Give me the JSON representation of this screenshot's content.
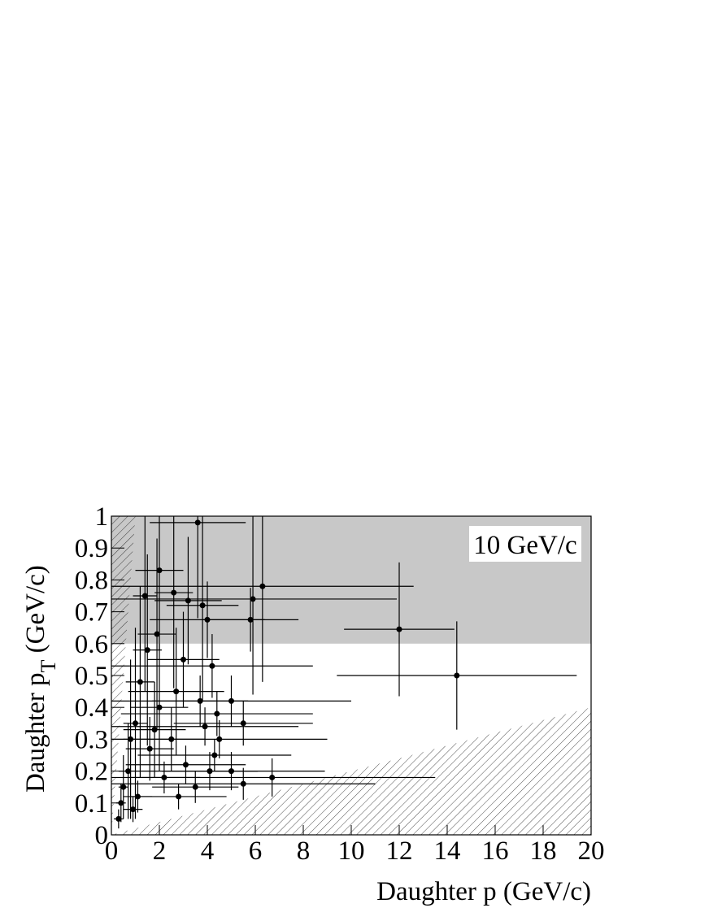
{
  "chart_data": {
    "type": "scatter",
    "x_label": "Daughter p (GeV/c)",
    "y_label": "Daughter p",
    "y_label_sub": "T",
    "y_label_end": " (GeV/c)",
    "annotation": "10 GeV/c",
    "xlim": [
      0,
      20
    ],
    "xticks": [
      0,
      2,
      4,
      6,
      8,
      10,
      12,
      14,
      16,
      18,
      20
    ],
    "ylim": [
      0,
      1
    ],
    "yticks": [
      0,
      0.1,
      0.2,
      0.3,
      0.4,
      0.5,
      0.6,
      0.7,
      0.8,
      0.9,
      1
    ],
    "shade_ymin": 0.6,
    "shade_color": "#c8c8c8",
    "hatch_upper_slope": 1,
    "hatch_lower_slope": 0.02,
    "color": "#000000",
    "x": [
      14.4,
      12.0,
      6.3,
      5.9,
      5.8,
      6.7,
      5.5,
      5.5,
      5.0,
      5.0,
      4.4,
      4.2,
      4.0,
      3.8,
      3.6,
      3.2,
      3.0,
      2.6,
      2.7,
      2.5,
      2.0,
      1.9,
      2.0,
      1.5,
      1.4,
      1.2,
      1.0,
      0.8,
      0.7,
      0.5,
      0.4,
      0.3,
      3.5,
      3.1,
      4.3,
      4.5,
      3.9,
      2.2,
      1.6,
      1.1,
      2.8,
      3.7,
      4.1,
      1.8,
      0.9
    ],
    "y": [
      0.5,
      0.645,
      0.78,
      0.74,
      0.675,
      0.18,
      0.35,
      0.16,
      0.42,
      0.2,
      0.38,
      0.53,
      0.675,
      0.72,
      0.98,
      0.735,
      0.55,
      0.76,
      0.45,
      0.3,
      0.83,
      0.63,
      0.4,
      0.58,
      0.75,
      0.48,
      0.35,
      0.3,
      0.2,
      0.15,
      0.1,
      0.05,
      0.15,
      0.22,
      0.25,
      0.3,
      0.34,
      0.18,
      0.27,
      0.12,
      0.12,
      0.42,
      0.2,
      0.33,
      0.08
    ],
    "xerr": [
      5,
      2.3,
      6.3,
      6,
      2,
      6.8,
      2.9,
      5.5,
      5,
      3.9,
      4,
      4.2,
      2.4,
      1.5,
      2,
      1.4,
      1.5,
      0.8,
      2,
      1.4,
      1.0,
      0.8,
      1.2,
      0.6,
      0.5,
      0.6,
      0.5,
      0.3,
      0.4,
      0.2,
      0.2,
      0.2,
      1.8,
      2.5,
      3.2,
      4.5,
      3.9,
      1.5,
      1.0,
      0.6,
      2,
      2,
      2,
      1.3,
      0.4
    ],
    "yerr": [
      0.17,
      0.21,
      0.3,
      0.3,
      0.1,
      0.06,
      0.07,
      0.05,
      0.08,
      0.06,
      0.07,
      0.1,
      0.12,
      0.3,
      0.3,
      0.2,
      0.15,
      0.3,
      0.2,
      0.1,
      0.25,
      0.3,
      0.2,
      0.3,
      0.3,
      0.3,
      0.3,
      0.25,
      0.15,
      0.1,
      0.06,
      0.03,
      0.05,
      0.06,
      0.05,
      0.06,
      0.06,
      0.05,
      0.1,
      0.05,
      0.04,
      0.08,
      0.06,
      0.15,
      0.04
    ]
  }
}
